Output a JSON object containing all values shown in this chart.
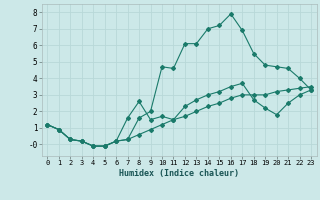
{
  "xlabel": "Humidex (Indice chaleur)",
  "background_color": "#cce8e8",
  "grid_color": "#b8d8d8",
  "line_color": "#1a7a6a",
  "xlim": [
    -0.5,
    23.5
  ],
  "ylim": [
    -0.7,
    8.5
  ],
  "xticks": [
    0,
    1,
    2,
    3,
    4,
    5,
    6,
    7,
    8,
    9,
    10,
    11,
    12,
    13,
    14,
    15,
    16,
    17,
    18,
    19,
    20,
    21,
    22,
    23
  ],
  "yticks": [
    0,
    1,
    2,
    3,
    4,
    5,
    6,
    7,
    8
  ],
  "ytick_labels": [
    "-0",
    "1",
    "2",
    "3",
    "4",
    "5",
    "6",
    "7",
    "8"
  ],
  "series1_x": [
    0,
    1,
    2,
    3,
    4,
    5,
    6,
    7,
    8,
    9,
    10,
    11,
    12,
    13,
    14,
    15,
    16,
    17,
    18,
    19,
    20,
    21,
    22,
    23
  ],
  "series1_y": [
    1.2,
    0.9,
    0.3,
    0.2,
    -0.1,
    -0.1,
    0.2,
    0.3,
    1.6,
    2.0,
    4.7,
    4.6,
    6.1,
    6.1,
    7.0,
    7.2,
    7.9,
    6.9,
    5.5,
    4.8,
    4.7,
    4.6,
    4.0,
    3.3
  ],
  "series2_x": [
    0,
    1,
    2,
    3,
    4,
    5,
    6,
    7,
    8,
    9,
    10,
    11,
    12,
    13,
    14,
    15,
    16,
    17,
    18,
    19,
    20,
    21,
    22,
    23
  ],
  "series2_y": [
    1.2,
    0.9,
    0.3,
    0.2,
    -0.1,
    -0.1,
    0.2,
    1.6,
    2.6,
    1.5,
    1.7,
    1.5,
    2.3,
    2.7,
    3.0,
    3.2,
    3.5,
    3.7,
    2.7,
    2.2,
    1.8,
    2.5,
    3.0,
    3.3
  ],
  "series3_x": [
    0,
    1,
    2,
    3,
    4,
    5,
    6,
    7,
    8,
    9,
    10,
    11,
    12,
    13,
    14,
    15,
    16,
    17,
    18,
    19,
    20,
    21,
    22,
    23
  ],
  "series3_y": [
    1.2,
    0.9,
    0.3,
    0.2,
    -0.1,
    -0.1,
    0.2,
    0.3,
    0.6,
    0.9,
    1.2,
    1.5,
    1.7,
    2.0,
    2.3,
    2.5,
    2.8,
    3.0,
    3.0,
    3.0,
    3.2,
    3.3,
    3.4,
    3.5
  ]
}
